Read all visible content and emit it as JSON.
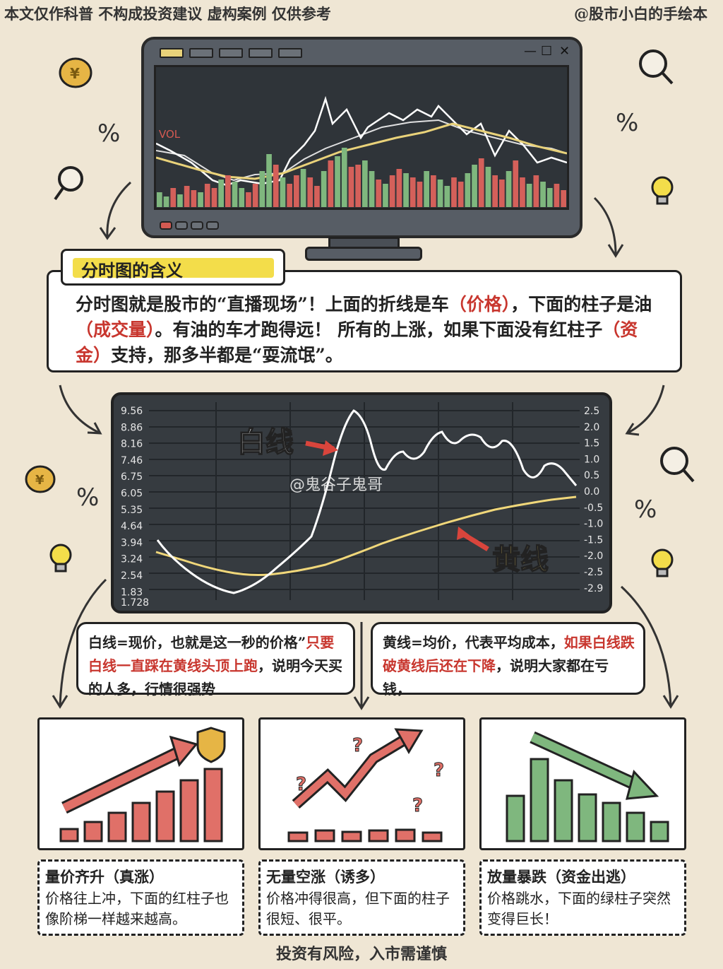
{
  "header": {
    "disclaimer": "本文仅作科普 不构成投资建议  虚构案例 仅供参考",
    "author": "@股市小白的手绘本"
  },
  "monitor": {
    "vol_label": "VOL",
    "controls": [
      "—",
      "☐",
      "✕"
    ]
  },
  "section_title": "分时图的含义",
  "description": {
    "p1": "分时图就是股市的“直播现场”！上面的折线是车",
    "price": "（价格）",
    "p2": "，下面的柱子是油",
    "volume": "（成交量）",
    "p3": "。有油的车才跑得远！ 所有的上涨，如果下面没有红柱子",
    "funds": "（资金）",
    "p4": "支持，那多半都是“耍流氓”。"
  },
  "chart": {
    "left_ticks": [
      "9.56",
      "8.86",
      "8.16",
      "7.46",
      "6.75",
      "6.05",
      "5.35",
      "4.64",
      "3.94",
      "3.24",
      "2.54",
      "1.83",
      "1.728"
    ],
    "right_ticks": [
      "2.5",
      "2.0",
      "1.5",
      "1.0",
      "0.5",
      "0.0",
      "-0.5",
      "-1.0",
      "-1.5",
      "-2.0",
      "-2.5",
      "-2.9"
    ],
    "white_label": "白线",
    "yellow_label": "黄线",
    "colors": {
      "white_line": "#ffffff",
      "yellow_line": "#f0d77a",
      "background": "#363b40"
    }
  },
  "watermark": "@鬼谷子鬼哥",
  "bubbles": {
    "white": {
      "title": "白线=现价",
      "text1": "，也就是这一秒的价格”",
      "highlight": "只要白线一直踩在黄线头顶上跑",
      "text2": "，说明今天买的人多，行情很强势"
    },
    "yellow": {
      "title": "黄线=均价",
      "text1": "，代表平均成本，",
      "highlight": "如果白线跌破黄线后还在下降",
      "text2": "，说明大家都在亏钱，"
    }
  },
  "cards": [
    {
      "title": "量价齐升（真涨）",
      "desc": "价格往上冲，下面的红柱子也像阶梯一样越来越高。"
    },
    {
      "title": "无量空涨（诱多）",
      "desc": "价格冲得很高，但下面的柱子很短、很平。"
    },
    {
      "title": "放量暴跌（资金出逃）",
      "desc": "价格跳水，下面的绿柱子突然变得巨长！"
    }
  ],
  "footer": "投资有风险，入市需谨慎"
}
